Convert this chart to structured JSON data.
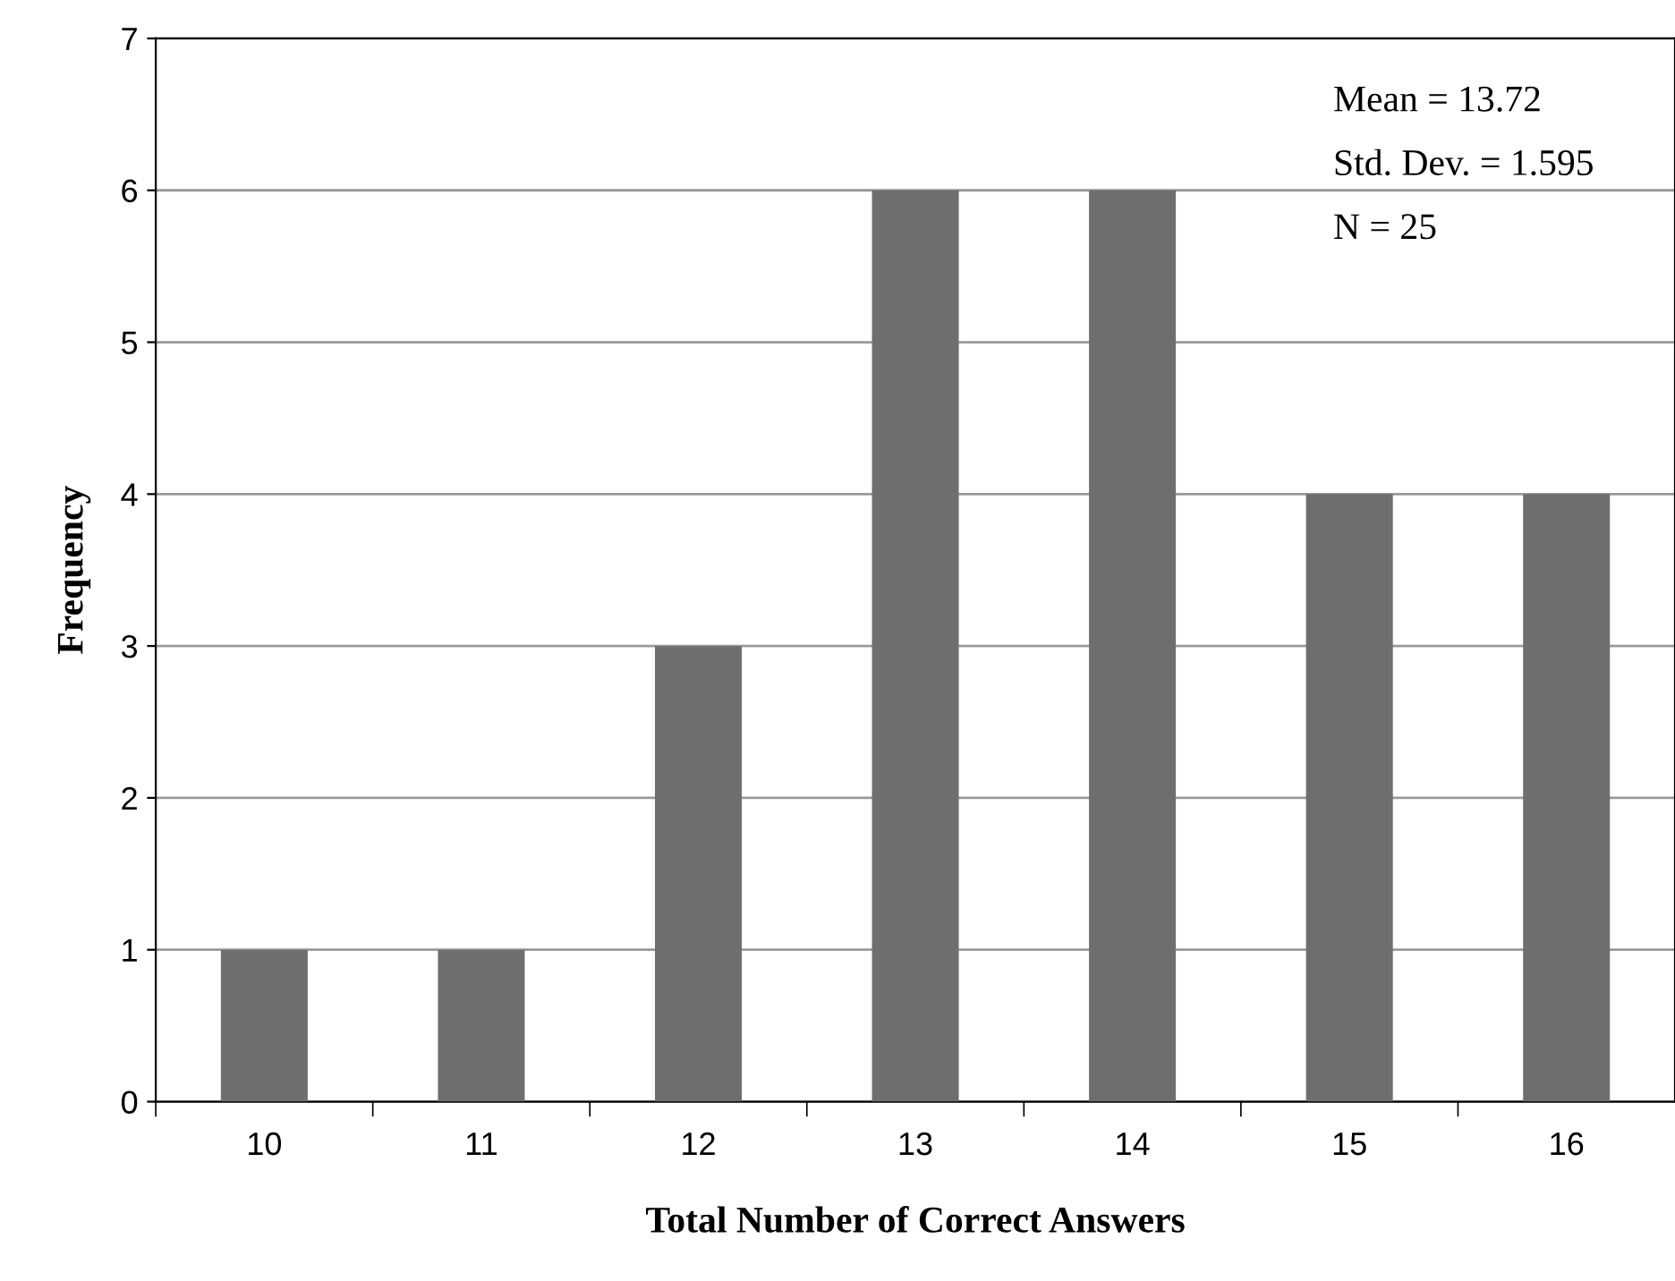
{
  "chart_data": {
    "type": "bar",
    "xlabel": "Total Number of Correct Answers",
    "ylabel": "Frequency",
    "categories": [
      "10",
      "11",
      "12",
      "13",
      "14",
      "15",
      "16"
    ],
    "values": [
      1,
      1,
      3,
      6,
      6,
      4,
      4
    ],
    "color": "#6e6e6e",
    "ylim": [
      0,
      7
    ],
    "yticks": [
      0,
      1,
      2,
      3,
      4,
      5,
      6,
      7
    ],
    "grid": "y",
    "annotations": [
      "Mean = 13.72",
      "Std. Dev. = 1.595",
      "N = 25"
    ]
  }
}
